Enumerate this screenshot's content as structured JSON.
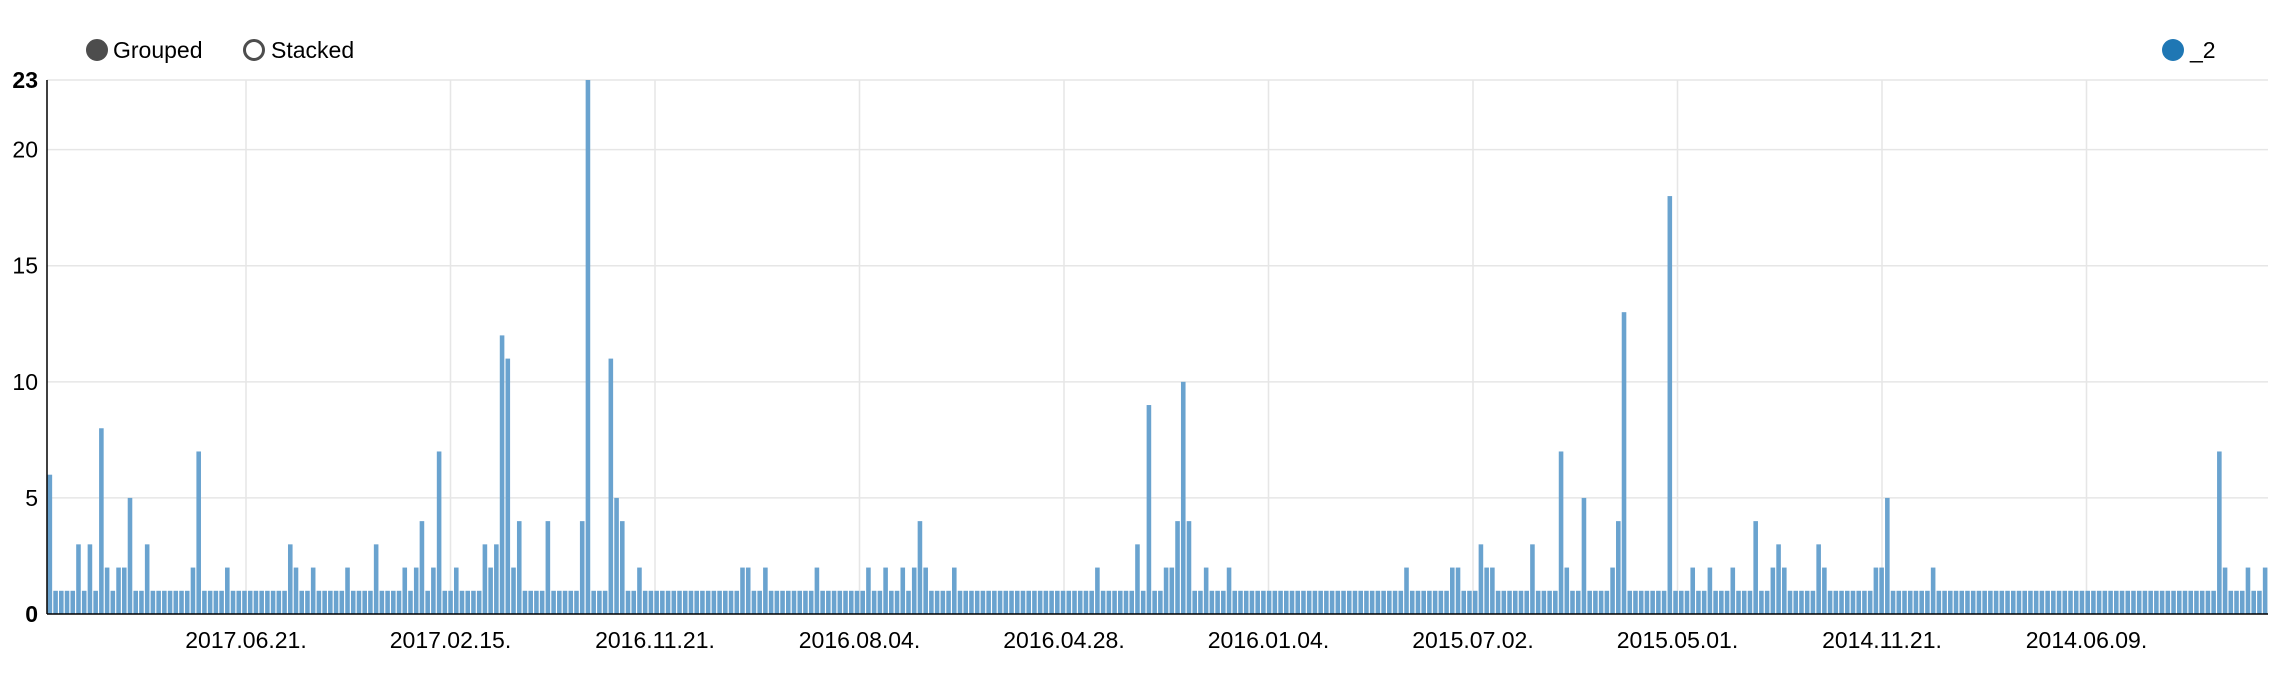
{
  "controls": {
    "grouped_label": "Grouped",
    "stacked_label": "Stacked",
    "selected": "Grouped"
  },
  "colors": {
    "bar": "#6aa3cf",
    "legend_dot": "#1f77b4",
    "grid": "#e6e6e6",
    "axis": "#000000"
  },
  "chart_data": {
    "type": "bar",
    "title": "",
    "xlabel": "",
    "ylabel": "",
    "ylim": [
      0,
      23
    ],
    "grid": true,
    "legend_position": "top-right",
    "y_ticks": [
      0,
      5,
      10,
      15,
      20,
      23
    ],
    "x_tick_labels": [
      "2017.06.21.",
      "2017.02.15.",
      "2016.11.21.",
      "2016.08.04.",
      "2016.04.28.",
      "2016.01.04.",
      "2015.07.02.",
      "2015.05.01.",
      "2014.11.21.",
      "2014.06.09."
    ],
    "series": [
      {
        "name": "_2",
        "values": [
          6,
          1,
          1,
          1,
          1,
          3,
          1,
          3,
          1,
          8,
          2,
          1,
          2,
          2,
          5,
          1,
          1,
          3,
          1,
          1,
          1,
          1,
          1,
          1,
          1,
          2,
          7,
          1,
          1,
          1,
          1,
          2,
          1,
          1,
          1,
          1,
          1,
          1,
          1,
          1,
          1,
          1,
          3,
          2,
          1,
          1,
          2,
          1,
          1,
          1,
          1,
          1,
          2,
          1,
          1,
          1,
          1,
          3,
          1,
          1,
          1,
          1,
          2,
          1,
          2,
          4,
          1,
          2,
          7,
          1,
          1,
          2,
          1,
          1,
          1,
          1,
          3,
          2,
          3,
          12,
          11,
          2,
          4,
          1,
          1,
          1,
          1,
          4,
          1,
          1,
          1,
          1,
          1,
          4,
          23,
          1,
          1,
          1,
          11,
          5,
          4,
          1,
          1,
          2,
          1,
          1,
          1,
          1,
          1,
          1,
          1,
          1,
          1,
          1,
          1,
          1,
          1,
          1,
          1,
          1,
          1,
          2,
          2,
          1,
          1,
          2,
          1,
          1,
          1,
          1,
          1,
          1,
          1,
          1,
          2,
          1,
          1,
          1,
          1,
          1,
          1,
          1,
          1,
          2,
          1,
          1,
          2,
          1,
          1,
          2,
          1,
          2,
          4,
          2,
          1,
          1,
          1,
          1,
          2,
          1,
          1,
          1,
          1,
          1,
          1,
          1,
          1,
          1,
          1,
          1,
          1,
          1,
          1,
          1,
          1,
          1,
          1,
          1,
          1,
          1,
          1,
          1,
          1,
          2,
          1,
          1,
          1,
          1,
          1,
          1,
          3,
          1,
          9,
          1,
          1,
          2,
          2,
          4,
          10,
          4,
          1,
          1,
          2,
          1,
          1,
          1,
          2,
          1,
          1,
          1,
          1,
          1,
          1,
          1,
          1,
          1,
          1,
          1,
          1,
          1,
          1,
          1,
          1,
          1,
          1,
          1,
          1,
          1,
          1,
          1,
          1,
          1,
          1,
          1,
          1,
          1,
          1,
          2,
          1,
          1,
          1,
          1,
          1,
          1,
          1,
          2,
          2,
          1,
          1,
          1,
          3,
          2,
          2,
          1,
          1,
          1,
          1,
          1,
          1,
          3,
          1,
          1,
          1,
          1,
          7,
          2,
          1,
          1,
          5,
          1,
          1,
          1,
          1,
          2,
          4,
          13,
          1,
          1,
          1,
          1,
          1,
          1,
          1,
          18,
          1,
          1,
          1,
          2,
          1,
          1,
          2,
          1,
          1,
          1,
          2,
          1,
          1,
          1,
          4,
          1,
          1,
          2,
          3,
          2,
          1,
          1,
          1,
          1,
          1,
          3,
          2,
          1,
          1,
          1,
          1,
          1,
          1,
          1,
          1,
          2,
          2,
          5,
          1,
          1,
          1,
          1,
          1,
          1,
          1,
          2,
          1,
          1,
          1,
          1,
          1,
          1,
          1,
          1,
          1,
          1,
          1,
          1,
          1,
          1,
          1,
          1,
          1,
          1,
          1,
          1,
          1,
          1,
          1,
          1,
          1,
          1,
          1,
          1,
          1,
          1,
          1,
          1,
          1,
          1,
          1,
          1,
          1,
          1,
          1,
          1,
          1,
          1,
          1,
          1,
          1,
          1,
          1,
          1,
          1,
          7,
          2,
          1,
          1,
          1,
          2,
          1,
          1,
          2
        ]
      }
    ]
  }
}
